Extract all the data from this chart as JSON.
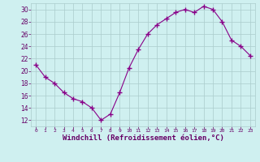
{
  "x": [
    0,
    1,
    2,
    3,
    4,
    5,
    6,
    7,
    8,
    9,
    10,
    11,
    12,
    13,
    14,
    15,
    16,
    17,
    18,
    19,
    20,
    21,
    22,
    23
  ],
  "y": [
    21,
    19,
    18,
    16.5,
    15.5,
    15,
    14,
    12,
    13,
    16.5,
    20.5,
    23.5,
    26,
    27.5,
    28.5,
    29.5,
    30,
    29.5,
    30.5,
    30,
    28,
    25,
    24,
    22.5
  ],
  "line_color": "#880088",
  "marker": "+",
  "marker_size": 4,
  "bg_color": "#cff0f0",
  "grid_color": "#aacccc",
  "xlabel": "Windchill (Refroidissement éolien,°C)",
  "xlabel_fontsize": 6.5,
  "xlabel_color": "#660066",
  "tick_color": "#660066",
  "xlim": [
    -0.5,
    23.5
  ],
  "ylim": [
    11,
    31
  ],
  "yticks": [
    12,
    14,
    16,
    18,
    20,
    22,
    24,
    26,
    28,
    30
  ],
  "xticks": [
    0,
    1,
    2,
    3,
    4,
    5,
    6,
    7,
    8,
    9,
    10,
    11,
    12,
    13,
    14,
    15,
    16,
    17,
    18,
    19,
    20,
    21,
    22,
    23
  ]
}
